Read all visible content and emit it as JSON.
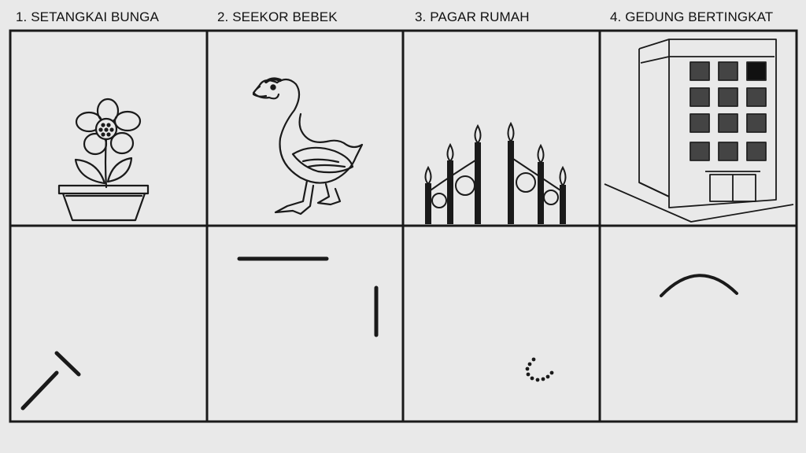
{
  "panels": [
    {
      "number": "1.",
      "title": "1. SETANGKAI BUNGA",
      "picture": "flower-pot"
    },
    {
      "number": "2.",
      "title": "2. SEEKOR BEBEK",
      "picture": "duck"
    },
    {
      "number": "3.",
      "title": "3. PAGAR RUMAH",
      "picture": "fence"
    },
    {
      "number": "4.",
      "title": "4. GEDUNG BERTINGKAT",
      "picture": "building"
    }
  ],
  "colors": {
    "background": "#e9e9e9",
    "line": "#1a1a1a",
    "window": "#444444"
  }
}
